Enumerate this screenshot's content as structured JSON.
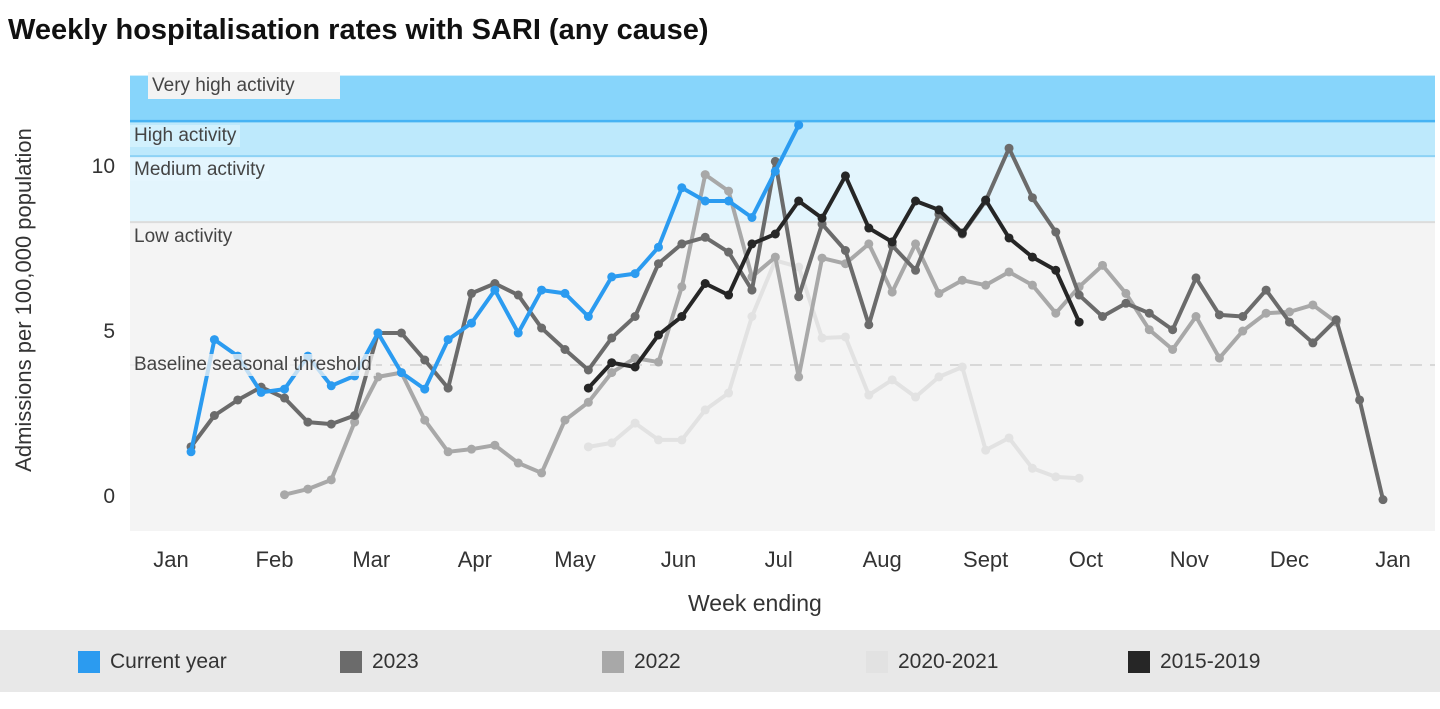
{
  "chart_data": {
    "type": "line",
    "title": "Weekly hospitalisation rates with SARI (any cause)",
    "xlabel": "Week ending",
    "ylabel": "Admissions per 100,000 population",
    "ylim": [
      -1,
      12.8
    ],
    "yticks": [
      "0",
      "5",
      "10"
    ],
    "ytick_values": [
      0,
      5,
      10
    ],
    "xticks": [
      "Jan",
      "Feb",
      "Mar",
      "Apr",
      "May",
      "Jun",
      "Jul",
      "Aug",
      "Sept",
      "Oct",
      "Nov",
      "Dec",
      "Jan"
    ],
    "interval_days": 7,
    "legend_position": "bottom",
    "grid": false,
    "bands": [
      {
        "label": "Very high activity",
        "from": 11.42,
        "to": 12.8,
        "color": "#87d5fb"
      },
      {
        "label": "High activity",
        "from": 10.36,
        "to": 11.42,
        "color": "#bde9fc"
      },
      {
        "label": "Medium activity",
        "from": 8.36,
        "to": 10.36,
        "color": "#e3f5fd"
      },
      {
        "label": "Low activity",
        "from": -1,
        "to": 8.36,
        "color": "#f4f4f4"
      }
    ],
    "threshold": {
      "label": "Baseline seasonal threshold",
      "value": 4.03
    },
    "series": [
      {
        "name": "2020-2021",
        "color": "#e2e2e2",
        "start": "05-05",
        "values": [
          1.55,
          1.67,
          2.27,
          1.76,
          1.76,
          2.67,
          3.18,
          5.5,
          7.2,
          7.0,
          4.85,
          4.88,
          3.12,
          3.58,
          3.06,
          3.67,
          3.97,
          1.45,
          1.82,
          0.9,
          0.64,
          0.6
        ]
      },
      {
        "name": "2022",
        "color": "#a8a8a8",
        "start": "02-04",
        "values": [
          0.1,
          0.27,
          0.55,
          2.3,
          3.67,
          3.8,
          2.36,
          1.4,
          1.48,
          1.6,
          1.06,
          0.76,
          2.36,
          2.9,
          3.8,
          4.24,
          4.12,
          6.4,
          9.8,
          9.3,
          6.7,
          7.3,
          3.67,
          7.27,
          7.1,
          7.7,
          6.24,
          7.7,
          6.2,
          6.6,
          6.45,
          6.85,
          6.45,
          5.6,
          6.4,
          7.05,
          6.2,
          5.1,
          4.5,
          5.5,
          4.24,
          5.06,
          5.6,
          5.64,
          5.85,
          5.33
        ]
      },
      {
        "name": "2023",
        "color": "#6b6b6b",
        "start": "01-07",
        "values": [
          1.55,
          2.5,
          2.97,
          3.36,
          3.03,
          2.3,
          2.24,
          2.5,
          5.0,
          5.0,
          4.18,
          3.33,
          6.2,
          6.5,
          6.15,
          5.15,
          4.5,
          3.88,
          4.85,
          5.5,
          7.1,
          7.7,
          7.9,
          7.45,
          6.3,
          10.2,
          6.1,
          8.3,
          7.5,
          5.25,
          7.65,
          6.9,
          8.6,
          8.0,
          9.0,
          10.6,
          9.1,
          8.06,
          6.15,
          5.5,
          5.9,
          5.6,
          5.1,
          6.67,
          5.55,
          5.5,
          6.3,
          5.33,
          4.7,
          5.4,
          2.97,
          -0.05
        ]
      },
      {
        "name": "2015-2019",
        "color": "#262626",
        "start": "05-05",
        "values": [
          3.33,
          4.1,
          3.97,
          4.94,
          5.5,
          6.5,
          6.15,
          7.7,
          8.0,
          9.0,
          8.48,
          9.76,
          8.18,
          7.76,
          9.0,
          8.73,
          8.03,
          9.03,
          7.88,
          7.3,
          6.9,
          5.33
        ]
      },
      {
        "name": "Current year",
        "color": "#2b9bf0",
        "start": "01-07",
        "values": [
          1.4,
          4.8,
          4.3,
          3.2,
          3.3,
          4.3,
          3.4,
          3.7,
          5.0,
          3.8,
          3.3,
          4.8,
          5.3,
          6.3,
          5.0,
          6.3,
          6.2,
          5.5,
          6.7,
          6.8,
          7.6,
          9.4,
          9.0,
          9.0,
          8.5,
          9.9,
          11.3
        ]
      }
    ],
    "legend": [
      {
        "name": "Current year",
        "color": "#2b9bf0"
      },
      {
        "name": "2023",
        "color": "#6b6b6b"
      },
      {
        "name": "2022",
        "color": "#a8a8a8"
      },
      {
        "name": "2020-2021",
        "color": "#e2e2e2"
      },
      {
        "name": "2015-2019",
        "color": "#262626"
      }
    ]
  }
}
